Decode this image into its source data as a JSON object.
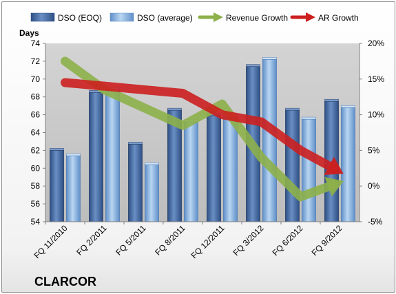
{
  "chart_data": {
    "type": "bar",
    "categories": [
      "FQ 11/2010",
      "FQ 2/2011",
      "FQ 5/2011",
      "FQ 8/2011",
      "FQ 12/2011",
      "FQ 3/2012",
      "FQ 6/2012",
      "FQ 9/2012"
    ],
    "series": [
      {
        "name": "DSO (EOQ)",
        "type": "bar",
        "axis": "left",
        "values": [
          62.0,
          68.5,
          62.7,
          66.5,
          65.9,
          71.4,
          66.5,
          67.5
        ],
        "color": "#4a6ea6"
      },
      {
        "name": "DSO (average)",
        "type": "bar",
        "axis": "left",
        "values": [
          61.4,
          68.8,
          60.4,
          65.2,
          65.8,
          72.2,
          65.5,
          66.8
        ],
        "color": "#8cb4e2"
      },
      {
        "name": "Revenue Growth",
        "type": "line",
        "axis": "right",
        "unit": "%",
        "values": [
          17.5,
          13.5,
          11.0,
          8.5,
          11.5,
          4.0,
          -1.5,
          0.5
        ],
        "color": "#8db04a"
      },
      {
        "name": "AR Growth",
        "type": "line",
        "axis": "right",
        "unit": "%",
        "values": [
          14.5,
          14.0,
          13.5,
          13.0,
          10.0,
          9.0,
          5.0,
          2.0
        ],
        "color": "#cc1f1f"
      }
    ],
    "ylabel": "Days",
    "ylim": [
      54,
      74
    ],
    "yticks": [
      54,
      56,
      58,
      60,
      62,
      64,
      66,
      68,
      70,
      72,
      74
    ],
    "y2lim": [
      -5,
      20
    ],
    "y2ticks": [
      "-5%",
      "0%",
      "5%",
      "10%",
      "15%",
      "20%"
    ],
    "y2tick_values": [
      -5,
      0,
      5,
      10,
      15,
      20
    ],
    "legend_position": "top",
    "grid": false,
    "plot_background": "#c9c9c9"
  },
  "company_label": "CLARCOR"
}
